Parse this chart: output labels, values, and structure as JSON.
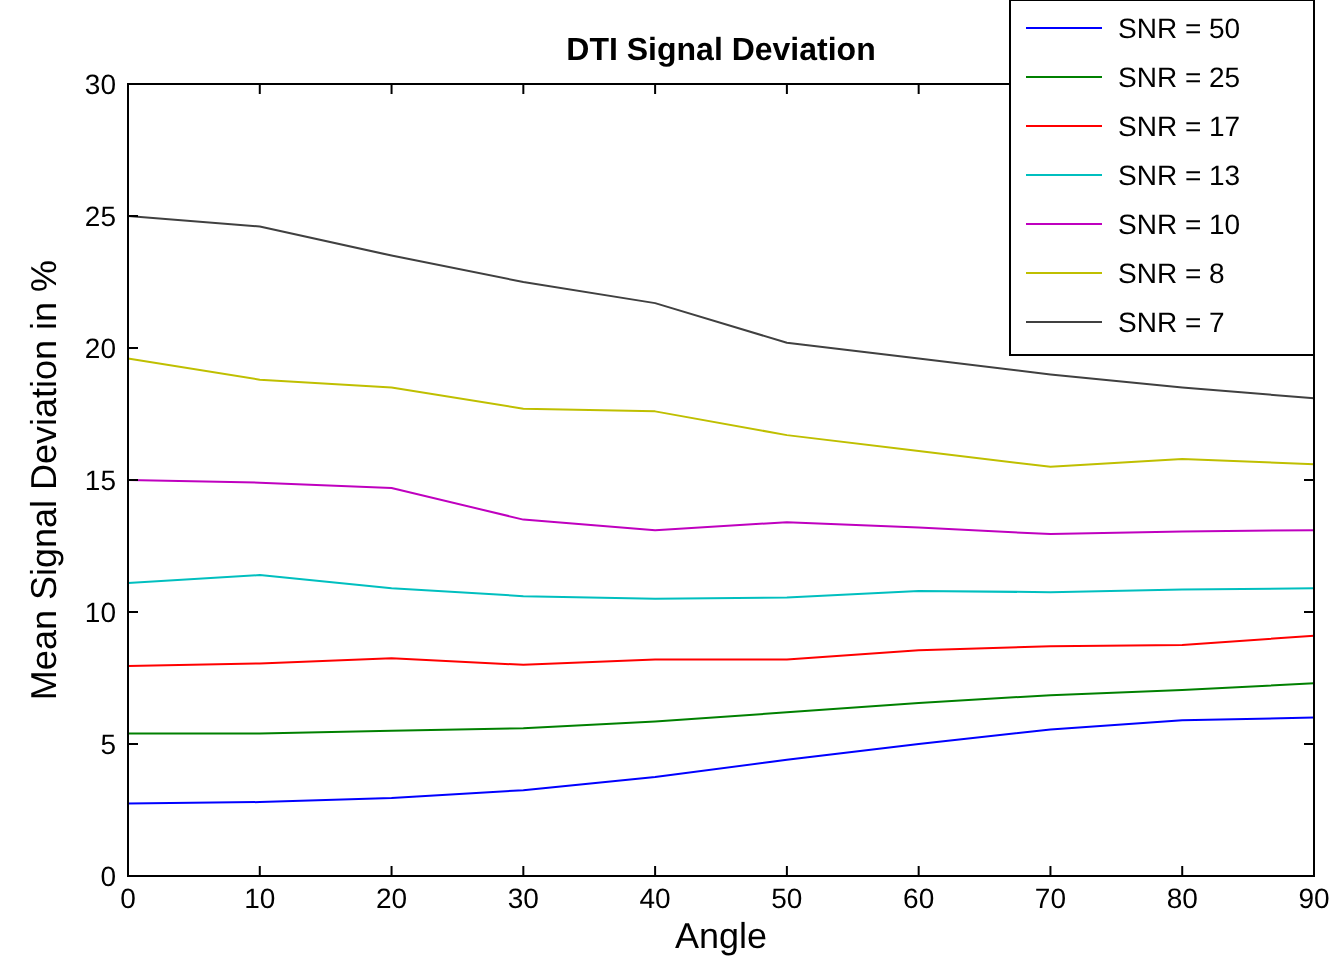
{
  "chart_data": {
    "type": "line",
    "title": "DTI Signal Deviation",
    "xlabel": "Angle",
    "ylabel": "Mean Signal Deviation in %",
    "x": [
      0,
      10,
      20,
      30,
      40,
      50,
      60,
      70,
      80,
      90
    ],
    "xlim": [
      0,
      90
    ],
    "xticks": [
      0,
      10,
      20,
      30,
      40,
      50,
      60,
      70,
      80,
      90
    ],
    "ylim": [
      0,
      30
    ],
    "yticks": [
      0,
      5,
      10,
      15,
      20,
      25,
      30
    ],
    "grid": false,
    "legend": "top right",
    "marker": "none",
    "line_style": "solid",
    "series": [
      {
        "name": "SNR = 50",
        "color": "#0000ff",
        "values": [
          2.75,
          2.8,
          2.95,
          3.25,
          3.75,
          4.4,
          5.0,
          5.55,
          5.9,
          6.0
        ]
      },
      {
        "name": "SNR = 25",
        "color": "#008000",
        "values": [
          5.4,
          5.4,
          5.5,
          5.6,
          5.85,
          6.2,
          6.55,
          6.85,
          7.05,
          7.3
        ]
      },
      {
        "name": "SNR = 17",
        "color": "#ff0000",
        "values": [
          7.95,
          8.05,
          8.25,
          8.0,
          8.2,
          8.2,
          8.55,
          8.7,
          8.75,
          9.1
        ]
      },
      {
        "name": "SNR = 13",
        "color": "#00bfbf",
        "values": [
          11.1,
          11.4,
          10.9,
          10.6,
          10.5,
          10.55,
          10.8,
          10.75,
          10.85,
          10.9
        ]
      },
      {
        "name": "SNR = 10",
        "color": "#bf00bf",
        "values": [
          15.0,
          14.9,
          14.7,
          13.5,
          13.1,
          13.4,
          13.2,
          12.95,
          13.05,
          13.1
        ]
      },
      {
        "name": "SNR = 8",
        "color": "#bfbf00",
        "values": [
          19.6,
          18.8,
          18.5,
          17.7,
          17.6,
          16.7,
          16.1,
          15.5,
          15.8,
          15.6
        ]
      },
      {
        "name": "SNR = 7",
        "color": "#404040",
        "values": [
          25.0,
          24.6,
          23.5,
          22.5,
          21.7,
          20.2,
          19.6,
          19.0,
          18.5,
          18.1
        ]
      }
    ]
  }
}
